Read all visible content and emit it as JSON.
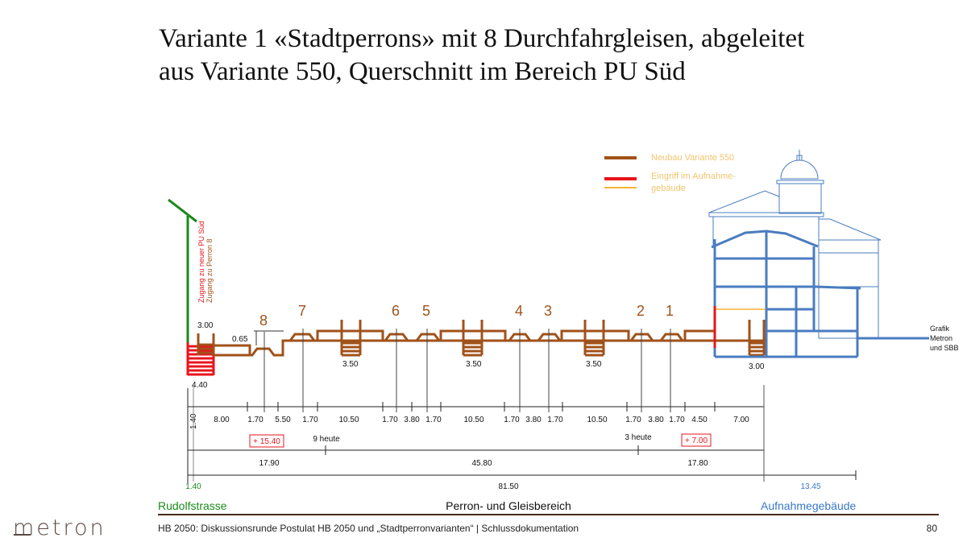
{
  "title": {
    "line1": "Variante 1 «Stadtperrons» mit 8 Durchfahrgleisen, abgeleitet",
    "line2": "aus Variante 550, Querschnitt im Bereich PU Süd"
  },
  "legend": {
    "neubau": "Neubau Variante 550",
    "eingriff_line1": "Eingriff im Aufnahme-",
    "eingriff_line2": "gebäude"
  },
  "colors": {
    "brown": "#a0521a",
    "red": "#e8141c",
    "orange": "#f5b335",
    "blue": "#4a7cc0",
    "green": "#1a8a1a"
  },
  "access": {
    "pu_sued": "Zugang zu neuer PU Süd",
    "perron8": "Zugang zu Perron 8"
  },
  "tracks": [
    "8",
    "7",
    "6",
    "5",
    "4",
    "3",
    "2",
    "1"
  ],
  "heights": {
    "left_stair": "3.00",
    "step": "0.65",
    "stair_a": "3.50",
    "stair_b": "3.50",
    "stair_c": "3.50",
    "stair_d": "3.00",
    "red_stair": "4.40",
    "vertical": "1.40"
  },
  "widths": [
    "8.00",
    "1.70",
    "5.50",
    "1.70",
    "10.50",
    "1.70",
    "3.80",
    "1.70",
    "10.50",
    "1.70",
    "3.80",
    "1.70",
    "10.50",
    "1.70",
    "3.80",
    "1.70",
    "4.50",
    "7.00"
  ],
  "annotations": {
    "plus_left": "+ 15.40",
    "today_left": "9 heute",
    "today_right": "3 heute",
    "plus_right": "+ 7.00"
  },
  "subtotals": [
    "17.90",
    "45.80",
    "17.80"
  ],
  "totals": {
    "left": "1.40",
    "middle": "81.50",
    "right": "13.45"
  },
  "zones": {
    "left": "Rudolfstrasse",
    "middle": "Perron- und Gleisbereich",
    "right": "Aufnahmegebäude"
  },
  "credit": [
    "Grafik",
    "Metron",
    "und SBB"
  ],
  "footer": {
    "logo": "metron",
    "text": "HB 2050: Diskussionsrunde Postulat HB 2050 und „Stadtperronvarianten“ | Schlussdokumentation",
    "page": "80"
  }
}
